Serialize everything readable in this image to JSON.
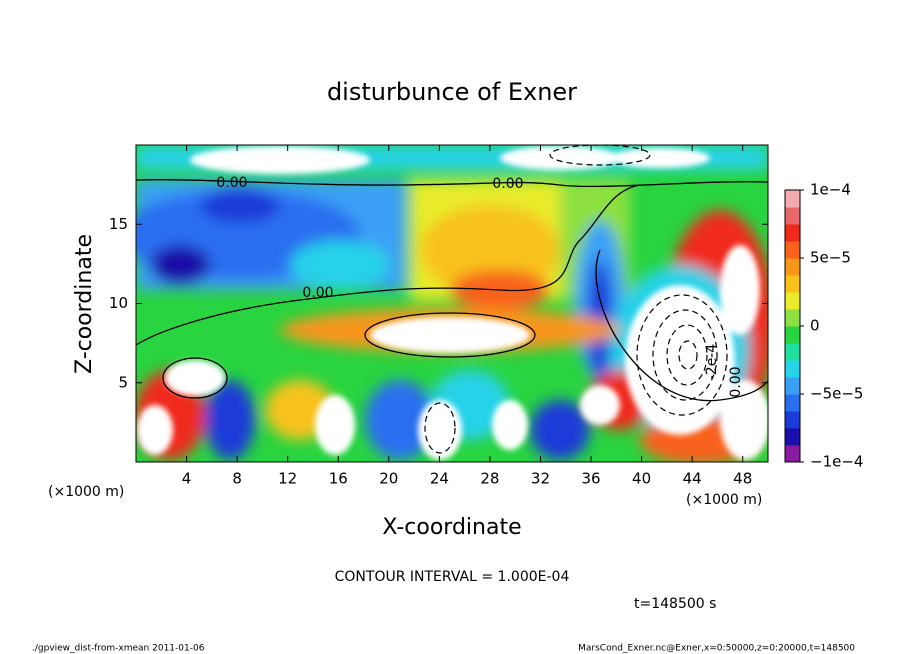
{
  "chart_data": {
    "type": "contour",
    "title": "disturbunce of Exner",
    "x_label": "X-coordinate",
    "y_label": "Z-coordinate",
    "axis_unit": "(×1000 m)",
    "xlim": [
      0,
      50
    ],
    "xticks": [
      4,
      8,
      12,
      16,
      20,
      24,
      28,
      32,
      36,
      40,
      44,
      48
    ],
    "ylim": [
      0,
      20
    ],
    "yticks": [
      5,
      10,
      15
    ],
    "colorbar": {
      "lim": [
        -0.0001,
        0.0001
      ],
      "ticks": [
        {
          "value": -0.0001,
          "label": "−1e−4"
        },
        {
          "value": -5e-05,
          "label": "−5e−5"
        },
        0,
        {
          "value": 5e-05,
          "label": "5e−5"
        },
        {
          "value": 0.0001,
          "label": "1e−4"
        }
      ],
      "colors": [
        "#8a1aa0",
        "#1a0fa8",
        "#1c3ad8",
        "#2a6ef0",
        "#3aa0f5",
        "#28d2e8",
        "#20e0a0",
        "#28d440",
        "#8ee040",
        "#e8ec2a",
        "#f8c21a",
        "#f8961a",
        "#f8621a",
        "#f02a1a",
        "#e8686a",
        "#f4aab0"
      ]
    },
    "contour_labels": [
      "0.00",
      "0.00",
      "0.00",
      "0.00",
      "-2e-4"
    ],
    "contour_interval": "CONTOUR INTERVAL = 1.000E-04",
    "time": "t=148500 s",
    "footer_left": "./gpview_dist-from-xmean  2011-01-06",
    "footer_right": "MarsCond_Exner.nc@Exner,x=0:50000,z=0:20000,t=148500"
  }
}
